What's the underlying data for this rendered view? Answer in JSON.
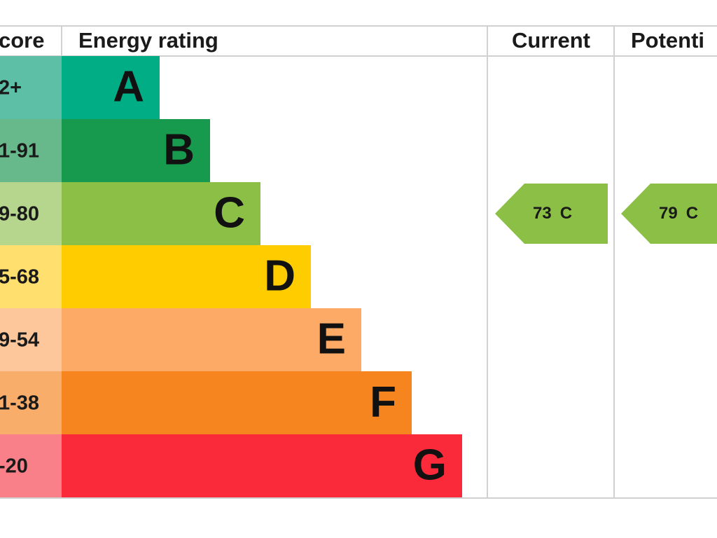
{
  "header": {
    "score": "core",
    "rating": "Energy rating",
    "current": "Current",
    "potential": "Potenti"
  },
  "bands": [
    {
      "score": "2+",
      "letter": "A",
      "color": "#00ad84",
      "light": "#5dbfa6"
    },
    {
      "score": "1-91",
      "letter": "B",
      "color": "#17994e",
      "light": "#67b98b"
    },
    {
      "score": "9-80",
      "letter": "C",
      "color": "#8cbf45",
      "light": "#b6d58d"
    },
    {
      "score": "5-68",
      "letter": "D",
      "color": "#ffcc00",
      "light": "#ffdf6e"
    },
    {
      "score": "9-54",
      "letter": "E",
      "color": "#fcaa65",
      "light": "#fdc69b"
    },
    {
      "score": "1-38",
      "letter": "F",
      "color": "#f6851f",
      "light": "#f8ad6b"
    },
    {
      "score": "-20",
      "letter": "G",
      "color": "#fb2a3a",
      "light": "#f98089"
    }
  ],
  "current": {
    "score": 73,
    "rating": "C"
  },
  "potential": {
    "score": 79,
    "rating": "C"
  }
}
